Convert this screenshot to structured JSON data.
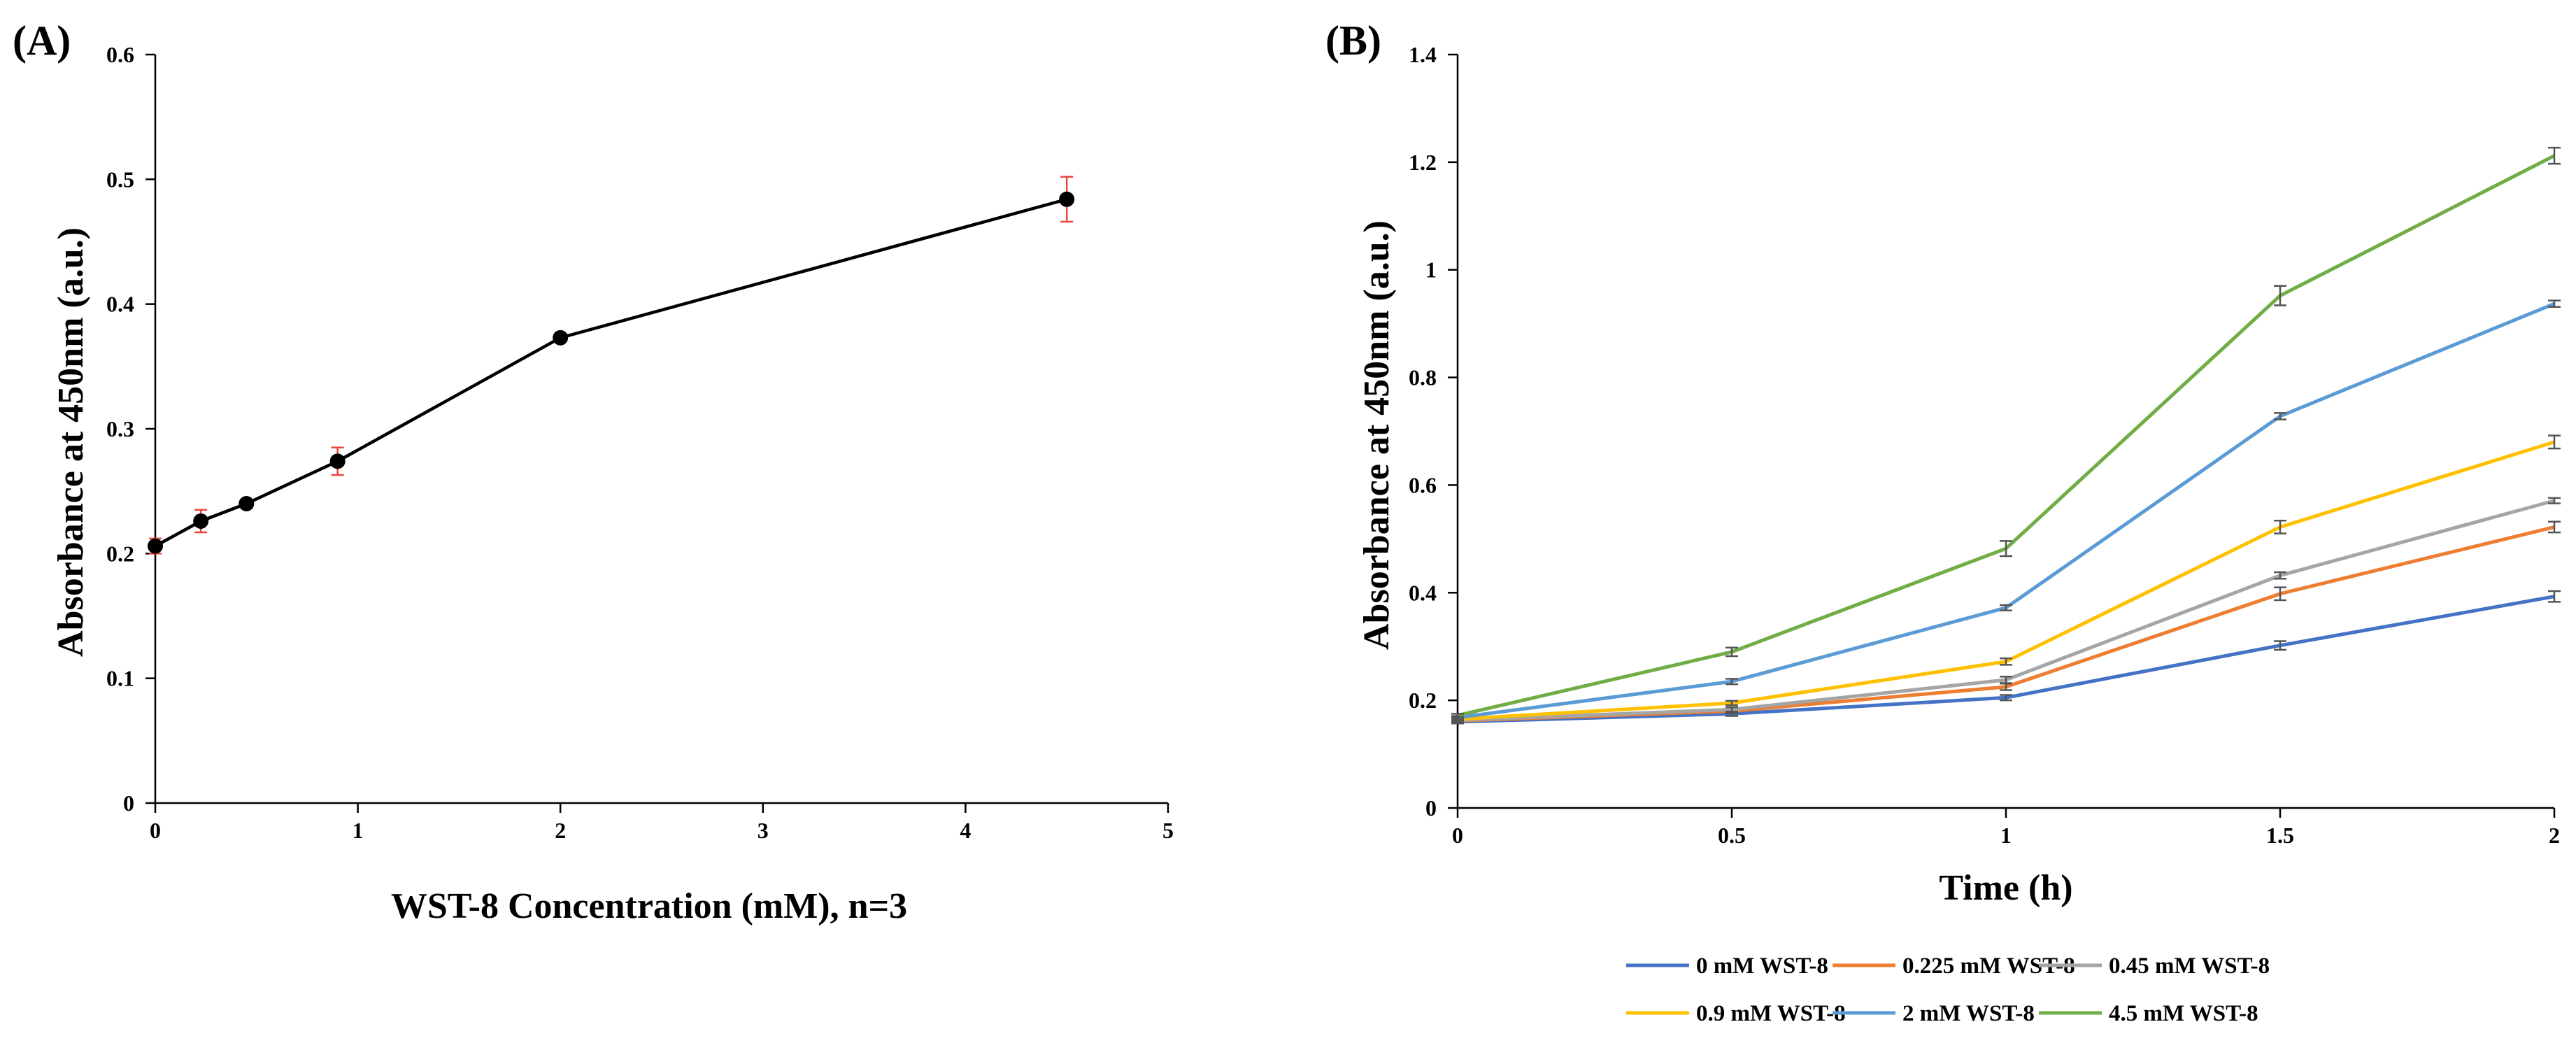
{
  "chart_data": [
    {
      "panel": "(A)",
      "type": "line",
      "title": "",
      "xlabel": "WST-8 Concentration (mM), n=3",
      "ylabel": "Absorbance at 450nm (a.u.)",
      "xlim": [
        0,
        5
      ],
      "ylim": [
        0,
        0.6
      ],
      "xticks": [
        0,
        1,
        2,
        3,
        4,
        5
      ],
      "yticks": [
        0,
        0.1,
        0.2,
        0.3,
        0.4,
        0.5,
        0.6
      ],
      "xtick_labels": [
        "0",
        "1",
        "2",
        "3",
        "4",
        "5"
      ],
      "ytick_labels": [
        "0",
        "0.1",
        "0.2",
        "0.3",
        "0.4",
        "0.5",
        "0.6"
      ],
      "grid": false,
      "series": [
        {
          "name": "Absorbance",
          "color": "#000000",
          "error_color": "#e8463b",
          "x": [
            0,
            0.225,
            0.45,
            0.9,
            2,
            4.5
          ],
          "y": [
            0.206,
            0.226,
            0.24,
            0.274,
            0.373,
            0.484
          ],
          "error": [
            0.006,
            0.009,
            0.003,
            0.011,
            0.003,
            0.018
          ]
        }
      ]
    },
    {
      "panel": "(B)",
      "type": "line",
      "title": "",
      "xlabel": "Time (h)",
      "ylabel": "Absorbance at 450nm (a.u.)",
      "xlim": [
        0,
        2
      ],
      "ylim": [
        0,
        1.4
      ],
      "xticks": [
        0,
        0.5,
        1,
        1.5,
        2
      ],
      "yticks": [
        0,
        0.2,
        0.4,
        0.6,
        0.8,
        1,
        1.2,
        1.4
      ],
      "xtick_labels": [
        "0",
        "0.5",
        "1",
        "1.5",
        "2"
      ],
      "ytick_labels": [
        "0",
        "0.2",
        "0.4",
        "0.6",
        "0.8",
        "1",
        "1.2",
        "1.4"
      ],
      "grid": false,
      "legend_position": "bottom",
      "x": [
        0,
        0.5,
        1,
        1.5,
        2
      ],
      "series": [
        {
          "name": "0 mM WST-8",
          "color": "#4472c4",
          "values": [
            0.16,
            0.175,
            0.205,
            0.302,
            0.393
          ],
          "error": [
            0.003,
            0.004,
            0.005,
            0.008,
            0.01
          ]
        },
        {
          "name": "0.225 mM WST-8",
          "color": "#ed7d31",
          "values": [
            0.162,
            0.18,
            0.225,
            0.398,
            0.522
          ],
          "error": [
            0.003,
            0.004,
            0.006,
            0.012,
            0.01
          ]
        },
        {
          "name": "0.45 mM WST-8",
          "color": "#a5a5a5",
          "values": [
            0.163,
            0.183,
            0.238,
            0.432,
            0.571
          ],
          "error": [
            0.003,
            0.004,
            0.006,
            0.006,
            0.005
          ]
        },
        {
          "name": "0.9 mM WST-8",
          "color": "#ffc000",
          "values": [
            0.165,
            0.195,
            0.272,
            0.522,
            0.68
          ],
          "error": [
            0.003,
            0.004,
            0.006,
            0.012,
            0.012
          ]
        },
        {
          "name": "2 mM WST-8",
          "color": "#5b9bd5",
          "values": [
            0.168,
            0.235,
            0.372,
            0.728,
            0.937
          ],
          "error": [
            0.003,
            0.005,
            0.005,
            0.006,
            0.006
          ]
        },
        {
          "name": "4.5 mM WST-8",
          "color": "#70ad47",
          "values": [
            0.172,
            0.29,
            0.482,
            0.952,
            1.212
          ],
          "error": [
            0.003,
            0.008,
            0.014,
            0.018,
            0.015
          ]
        }
      ]
    }
  ]
}
